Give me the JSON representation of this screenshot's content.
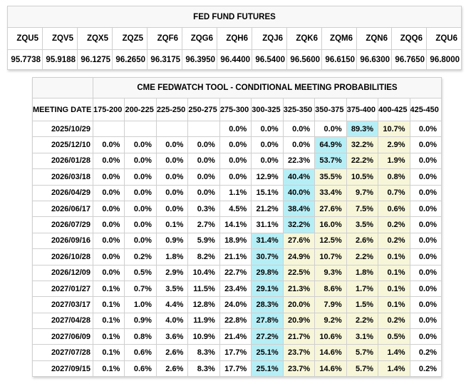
{
  "futures": {
    "title": "FED FUND FUTURES",
    "contracts": [
      {
        "symbol": "ZQU5",
        "price": "95.7738"
      },
      {
        "symbol": "ZQV5",
        "price": "95.9188"
      },
      {
        "symbol": "ZQX5",
        "price": "96.1275"
      },
      {
        "symbol": "ZQZ5",
        "price": "96.2650"
      },
      {
        "symbol": "ZQF6",
        "price": "96.3175"
      },
      {
        "symbol": "ZQG6",
        "price": "96.3950"
      },
      {
        "symbol": "ZQH6",
        "price": "96.4400"
      },
      {
        "symbol": "ZQJ6",
        "price": "96.5400"
      },
      {
        "symbol": "ZQK6",
        "price": "96.5600"
      },
      {
        "symbol": "ZQM6",
        "price": "96.6150"
      },
      {
        "symbol": "ZQN6",
        "price": "96.6300"
      },
      {
        "symbol": "ZQQ6",
        "price": "96.7650"
      },
      {
        "symbol": "ZQU6",
        "price": "96.8000"
      }
    ]
  },
  "fedwatch": {
    "title": "CME FEDWATCH TOOL - CONDITIONAL MEETING PROBABILITIES",
    "date_column_header": "MEETING DATE",
    "rate_ranges": [
      "175-200",
      "200-225",
      "225-250",
      "250-275",
      "275-300",
      "300-325",
      "325-350",
      "350-375",
      "375-400",
      "400-425",
      "425-450"
    ],
    "style_legend": {
      "c": "cyan max-probability highlight",
      "y": "yellow band highlight",
      "": "no highlight"
    },
    "colors": {
      "max_highlight": "#b6eef6",
      "band_highlight": "#f7f6d9",
      "title_bg": "#f8f8f8",
      "grid": "#cfcfcf"
    },
    "rows": [
      {
        "date": "2025/10/29",
        "values": [
          "",
          "",
          "",
          "",
          "0.0%",
          "0.0%",
          "0.0%",
          "0.0%",
          "89.3%",
          "10.7%",
          "0.0%"
        ],
        "styles": [
          "",
          "",
          "",
          "",
          "",
          "",
          "",
          "",
          "c",
          "y",
          ""
        ]
      },
      {
        "date": "2025/12/10",
        "values": [
          "0.0%",
          "0.0%",
          "0.0%",
          "0.0%",
          "0.0%",
          "0.0%",
          "0.0%",
          "64.9%",
          "32.2%",
          "2.9%",
          "0.0%"
        ],
        "styles": [
          "",
          "",
          "",
          "",
          "",
          "",
          "",
          "c",
          "y",
          "y",
          ""
        ]
      },
      {
        "date": "2026/01/28",
        "values": [
          "0.0%",
          "0.0%",
          "0.0%",
          "0.0%",
          "0.0%",
          "0.0%",
          "22.3%",
          "53.7%",
          "22.2%",
          "1.9%",
          "0.0%"
        ],
        "styles": [
          "",
          "",
          "",
          "",
          "",
          "",
          "",
          "c",
          "y",
          "y",
          ""
        ]
      },
      {
        "date": "2026/03/18",
        "values": [
          "0.0%",
          "0.0%",
          "0.0%",
          "0.0%",
          "0.0%",
          "12.9%",
          "40.4%",
          "35.5%",
          "10.5%",
          "0.8%",
          "0.0%"
        ],
        "styles": [
          "",
          "",
          "",
          "",
          "",
          "",
          "c",
          "y",
          "y",
          "y",
          ""
        ]
      },
      {
        "date": "2026/04/29",
        "values": [
          "0.0%",
          "0.0%",
          "0.0%",
          "0.0%",
          "1.1%",
          "15.1%",
          "40.0%",
          "33.4%",
          "9.7%",
          "0.7%",
          "0.0%"
        ],
        "styles": [
          "",
          "",
          "",
          "",
          "",
          "",
          "c",
          "y",
          "y",
          "y",
          ""
        ]
      },
      {
        "date": "2026/06/17",
        "values": [
          "0.0%",
          "0.0%",
          "0.0%",
          "0.3%",
          "4.5%",
          "21.2%",
          "38.4%",
          "27.6%",
          "7.5%",
          "0.6%",
          "0.0%"
        ],
        "styles": [
          "",
          "",
          "",
          "",
          "",
          "",
          "c",
          "y",
          "y",
          "y",
          ""
        ]
      },
      {
        "date": "2026/07/29",
        "values": [
          "0.0%",
          "0.0%",
          "0.1%",
          "2.7%",
          "14.1%",
          "31.1%",
          "32.2%",
          "16.0%",
          "3.5%",
          "0.2%",
          "0.0%"
        ],
        "styles": [
          "",
          "",
          "",
          "",
          "",
          "",
          "c",
          "y",
          "y",
          "y",
          ""
        ]
      },
      {
        "date": "2026/09/16",
        "values": [
          "0.0%",
          "0.0%",
          "0.9%",
          "5.9%",
          "18.9%",
          "31.4%",
          "27.6%",
          "12.5%",
          "2.6%",
          "0.2%",
          "0.0%"
        ],
        "styles": [
          "",
          "",
          "",
          "",
          "",
          "c",
          "y",
          "y",
          "y",
          "y",
          ""
        ]
      },
      {
        "date": "2026/10/28",
        "values": [
          "0.0%",
          "0.2%",
          "1.8%",
          "8.2%",
          "21.1%",
          "30.7%",
          "24.9%",
          "10.7%",
          "2.2%",
          "0.1%",
          "0.0%"
        ],
        "styles": [
          "",
          "",
          "",
          "",
          "",
          "c",
          "y",
          "y",
          "y",
          "y",
          ""
        ]
      },
      {
        "date": "2026/12/09",
        "values": [
          "0.0%",
          "0.5%",
          "2.9%",
          "10.4%",
          "22.7%",
          "29.8%",
          "22.5%",
          "9.3%",
          "1.8%",
          "0.1%",
          "0.0%"
        ],
        "styles": [
          "",
          "",
          "",
          "",
          "",
          "c",
          "y",
          "y",
          "y",
          "y",
          ""
        ]
      },
      {
        "date": "2027/01/27",
        "values": [
          "0.1%",
          "0.7%",
          "3.5%",
          "11.5%",
          "23.4%",
          "29.1%",
          "21.3%",
          "8.6%",
          "1.7%",
          "0.1%",
          "0.0%"
        ],
        "styles": [
          "",
          "",
          "",
          "",
          "",
          "c",
          "y",
          "y",
          "y",
          "y",
          ""
        ]
      },
      {
        "date": "2027/03/17",
        "values": [
          "0.1%",
          "1.0%",
          "4.4%",
          "12.8%",
          "24.0%",
          "28.3%",
          "20.0%",
          "7.9%",
          "1.5%",
          "0.1%",
          "0.0%"
        ],
        "styles": [
          "",
          "",
          "",
          "",
          "",
          "c",
          "y",
          "y",
          "y",
          "y",
          ""
        ]
      },
      {
        "date": "2027/04/28",
        "values": [
          "0.1%",
          "0.9%",
          "4.0%",
          "11.9%",
          "22.8%",
          "27.8%",
          "20.9%",
          "9.2%",
          "2.2%",
          "0.2%",
          "0.0%"
        ],
        "styles": [
          "",
          "",
          "",
          "",
          "",
          "c",
          "y",
          "y",
          "y",
          "y",
          ""
        ]
      },
      {
        "date": "2027/06/09",
        "values": [
          "0.1%",
          "0.8%",
          "3.6%",
          "10.9%",
          "21.4%",
          "27.2%",
          "21.7%",
          "10.6%",
          "3.1%",
          "0.5%",
          "0.0%"
        ],
        "styles": [
          "",
          "",
          "",
          "",
          "",
          "c",
          "y",
          "y",
          "y",
          "y",
          ""
        ]
      },
      {
        "date": "2027/07/28",
        "values": [
          "0.1%",
          "0.6%",
          "2.6%",
          "8.3%",
          "17.7%",
          "25.1%",
          "23.7%",
          "14.6%",
          "5.7%",
          "1.4%",
          "0.2%"
        ],
        "styles": [
          "",
          "",
          "",
          "",
          "",
          "c",
          "y",
          "y",
          "y",
          "y",
          ""
        ]
      },
      {
        "date": "2027/09/15",
        "values": [
          "0.1%",
          "0.6%",
          "2.6%",
          "8.3%",
          "17.7%",
          "25.1%",
          "23.7%",
          "14.6%",
          "5.7%",
          "1.4%",
          "0.2%"
        ],
        "styles": [
          "",
          "",
          "",
          "",
          "",
          "c",
          "y",
          "y",
          "y",
          "y",
          ""
        ]
      }
    ]
  }
}
